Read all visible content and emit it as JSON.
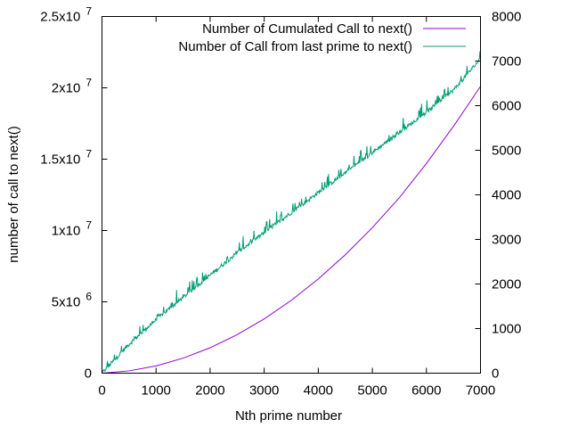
{
  "chart_data": {
    "type": "line",
    "title": "",
    "xlabel": "Nth prime number",
    "ylabel": "number of call to next()",
    "y2label": "",
    "xlim": [
      0,
      7000
    ],
    "ylim": [
      0,
      25000000
    ],
    "y2lim": [
      0,
      8000
    ],
    "grid": false,
    "legend_position": "top-right",
    "x_ticks": [
      {
        "value": 0,
        "label": "0"
      },
      {
        "value": 1000,
        "label": "1000"
      },
      {
        "value": 2000,
        "label": "2000"
      },
      {
        "value": 3000,
        "label": "3000"
      },
      {
        "value": 4000,
        "label": "4000"
      },
      {
        "value": 5000,
        "label": "5000"
      },
      {
        "value": 6000,
        "label": "6000"
      },
      {
        "value": 7000,
        "label": "7000"
      }
    ],
    "y_ticks": [
      {
        "value": 0,
        "mantissa": "0",
        "exponent": ""
      },
      {
        "value": 5000000,
        "mantissa": "5x10",
        "exponent": "6"
      },
      {
        "value": 10000000,
        "mantissa": "1x10",
        "exponent": "7"
      },
      {
        "value": 15000000,
        "mantissa": "1.5x10",
        "exponent": "7"
      },
      {
        "value": 20000000,
        "mantissa": "2x10",
        "exponent": "7"
      },
      {
        "value": 25000000,
        "mantissa": "2.5x10",
        "exponent": "7"
      }
    ],
    "y2_ticks": [
      {
        "value": 0,
        "label": "0"
      },
      {
        "value": 1000,
        "label": "1000"
      },
      {
        "value": 2000,
        "label": "2000"
      },
      {
        "value": 3000,
        "label": "3000"
      },
      {
        "value": 4000,
        "label": "4000"
      },
      {
        "value": 5000,
        "label": "5000"
      },
      {
        "value": 6000,
        "label": "6000"
      },
      {
        "value": 7000,
        "label": "7000"
      },
      {
        "value": 8000,
        "label": "8000"
      }
    ],
    "series": [
      {
        "name": "Number of Cumulated Call to next()",
        "axis": "y",
        "color": "#9400d3",
        "x": [
          0,
          500,
          1000,
          1500,
          2000,
          2500,
          3000,
          3500,
          4000,
          4500,
          5000,
          5500,
          6000,
          6500,
          7000
        ],
        "values": [
          0,
          160000,
          510000,
          1050000,
          1780000,
          2700000,
          3800000,
          5100000,
          6600000,
          8300000,
          10200000,
          12300000,
          14700000,
          17300000,
          20100000
        ]
      },
      {
        "name": "Number of Call from last prime to next()",
        "axis": "y2",
        "color": "#009e73",
        "x": [
          0,
          500,
          1000,
          1500,
          2000,
          2500,
          3000,
          3500,
          4000,
          4500,
          5000,
          5500,
          6000,
          6500,
          7000
        ],
        "values": [
          0,
          650,
          1200,
          1700,
          2200,
          2700,
          3150,
          3600,
          4050,
          4500,
          4950,
          5400,
          5850,
          6350,
          7050
        ]
      }
    ]
  }
}
